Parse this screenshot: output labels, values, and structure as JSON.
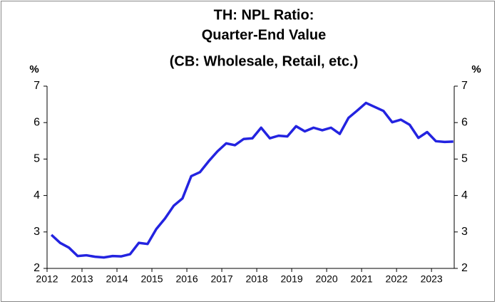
{
  "chart_data": {
    "type": "line",
    "title": [
      "TH: NPL Ratio:",
      "Quarter-End Value",
      "(CB: Wholesale, Retail, etc.)"
    ],
    "ylabel": "%",
    "y2label": "%",
    "x": [
      2012.125,
      2012.375,
      2012.625,
      2012.875,
      2013.125,
      2013.375,
      2013.625,
      2013.875,
      2014.125,
      2014.375,
      2014.625,
      2014.875,
      2015.125,
      2015.375,
      2015.625,
      2015.875,
      2016.125,
      2016.375,
      2016.625,
      2016.875,
      2017.125,
      2017.375,
      2017.625,
      2017.875,
      2018.125,
      2018.375,
      2018.625,
      2018.875,
      2019.125,
      2019.375,
      2019.625,
      2019.875,
      2020.125,
      2020.375,
      2020.625,
      2020.875,
      2021.125,
      2021.375,
      2021.625,
      2021.875,
      2022.125,
      2022.375,
      2022.625,
      2022.875,
      2023.125,
      2023.375,
      2023.625
    ],
    "series": [
      {
        "name": "NPL Ratio",
        "color": "#2323e0",
        "values": [
          2.92,
          2.7,
          2.57,
          2.34,
          2.36,
          2.32,
          2.3,
          2.34,
          2.33,
          2.39,
          2.7,
          2.67,
          3.08,
          3.37,
          3.72,
          3.92,
          4.53,
          4.64,
          4.94,
          5.21,
          5.43,
          5.38,
          5.55,
          5.57,
          5.86,
          5.57,
          5.64,
          5.62,
          5.9,
          5.76,
          5.86,
          5.79,
          5.86,
          5.69,
          6.13,
          6.33,
          6.54,
          6.43,
          6.32,
          6.01,
          6.08,
          5.94,
          5.58,
          5.74,
          5.49,
          5.47,
          5.48
        ]
      }
    ],
    "xlim": [
      2012,
      2023.65
    ],
    "xticks": [
      2012,
      2013,
      2014,
      2015,
      2016,
      2017,
      2018,
      2019,
      2020,
      2021,
      2022,
      2023
    ],
    "ylim": [
      2,
      7
    ],
    "yticks": [
      2,
      3,
      4,
      5,
      6,
      7
    ],
    "y2lim": [
      2,
      7
    ],
    "y2ticks": [
      2,
      3,
      4,
      5,
      6,
      7
    ],
    "grid": false
  }
}
